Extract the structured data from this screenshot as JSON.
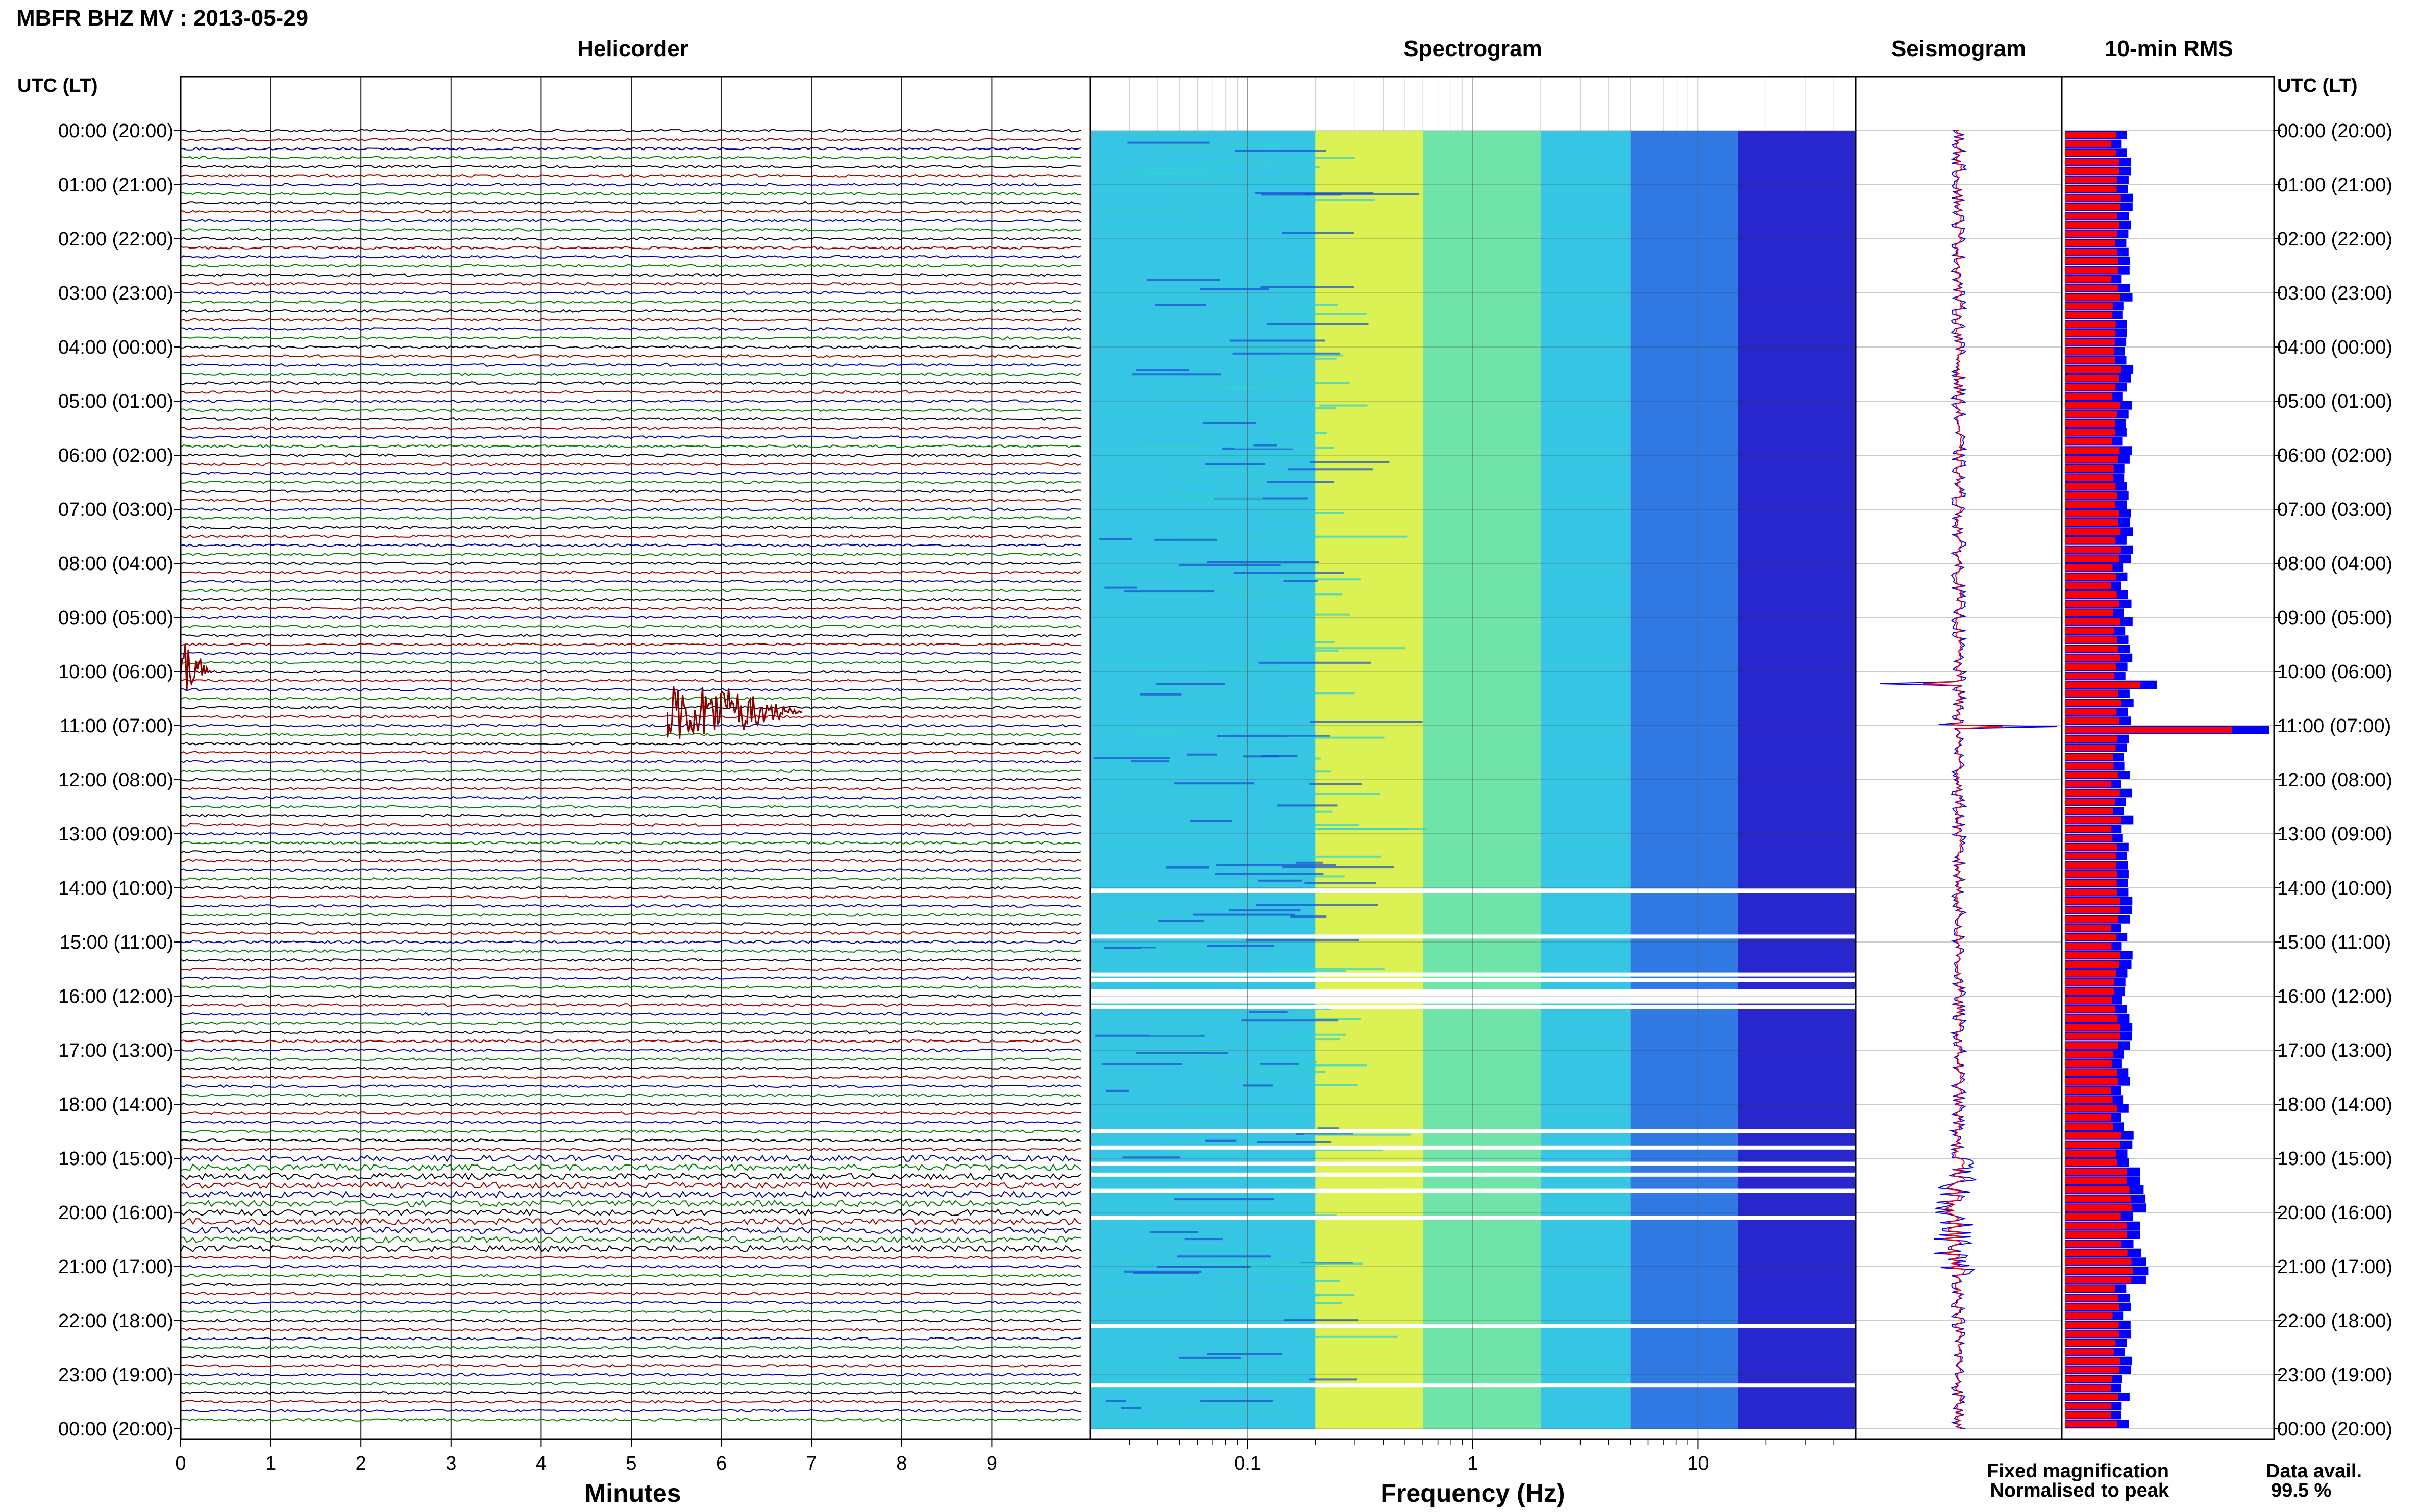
{
  "header": {
    "title": "MBFR BHZ MV : 2013-05-29"
  },
  "chart_data": {
    "type": "heatmap",
    "station_title": "MBFR BHZ MV : 2013-05-29",
    "data_availability_label": "Data avail.",
    "data_availability_value": "99.5 %",
    "panels": {
      "helicorder": {
        "title": "Helicorder",
        "xlabel": "Minutes",
        "x_ticks": [
          "0",
          "1",
          "2",
          "3",
          "4",
          "5",
          "6",
          "7",
          "8",
          "9"
        ],
        "xlim": [
          0,
          10
        ],
        "trace_colors": [
          "#000000",
          "#a00000",
          "#0000a0",
          "#008000"
        ],
        "events": [
          {
            "name": "large event",
            "hour_utc": 10.75,
            "minute_start": 5.4,
            "minute_end": 6.9,
            "amplitude": "high"
          },
          {
            "name": "onset spike",
            "hour_utc": 10.0,
            "minute_start": 0.0,
            "minute_end": 0.35,
            "amplitude": "high"
          }
        ]
      },
      "spectrogram": {
        "title": "Spectrogram",
        "xlabel": "Frequency (Hz)",
        "x_ticks": [
          "0.1",
          "1",
          "10"
        ],
        "xlim": [
          0.02,
          50
        ],
        "xscale": "log",
        "colormap": [
          "#1010c8",
          "#1a6ae0",
          "#20c0e0",
          "#60e0a0",
          "#d8f040"
        ],
        "energy_band_hz": [
          0.2,
          0.6
        ],
        "data_gaps_utc": [
          14.05,
          14.9,
          15.6,
          15.7,
          16.1,
          16.2,
          18.5,
          18.8,
          19.1,
          19.3,
          19.6,
          20.1,
          22.1,
          23.2
        ]
      },
      "seismogram": {
        "title": "Seismogram",
        "legend": [
          {
            "label": "Fixed magnification",
            "color": "#0000ff"
          },
          {
            "label": "Normalised to peak",
            "color": "#ff0000"
          }
        ]
      },
      "rms": {
        "title": "10-min RMS",
        "series": [
          {
            "name": "Fixed magnification",
            "color": "#0000ff"
          },
          {
            "name": "Normalised to peak",
            "color": "#ff0000"
          }
        ],
        "peaks": [
          {
            "hour_utc": 10.2,
            "value": 1.8
          },
          {
            "hour_utc": 11.0,
            "value": 4.0
          },
          {
            "hour_utc": 19.9,
            "value": 1.6
          }
        ]
      }
    },
    "y_axis": {
      "left_title": "UTC (LT)",
      "right_title": "UTC (LT)",
      "labels": [
        "00:00 (20:00)",
        "01:00 (21:00)",
        "02:00 (22:00)",
        "03:00 (23:00)",
        "04:00 (00:00)",
        "05:00 (01:00)",
        "06:00 (02:00)",
        "07:00 (03:00)",
        "08:00 (04:00)",
        "09:00 (05:00)",
        "10:00 (06:00)",
        "11:00 (07:00)",
        "12:00 (08:00)",
        "13:00 (09:00)",
        "14:00 (10:00)",
        "15:00 (11:00)",
        "16:00 (12:00)",
        "17:00 (13:00)",
        "18:00 (14:00)",
        "19:00 (15:00)",
        "20:00 (16:00)",
        "21:00 (17:00)",
        "22:00 (18:00)",
        "23:00 (19:00)",
        "00:00 (20:00)"
      ]
    }
  }
}
